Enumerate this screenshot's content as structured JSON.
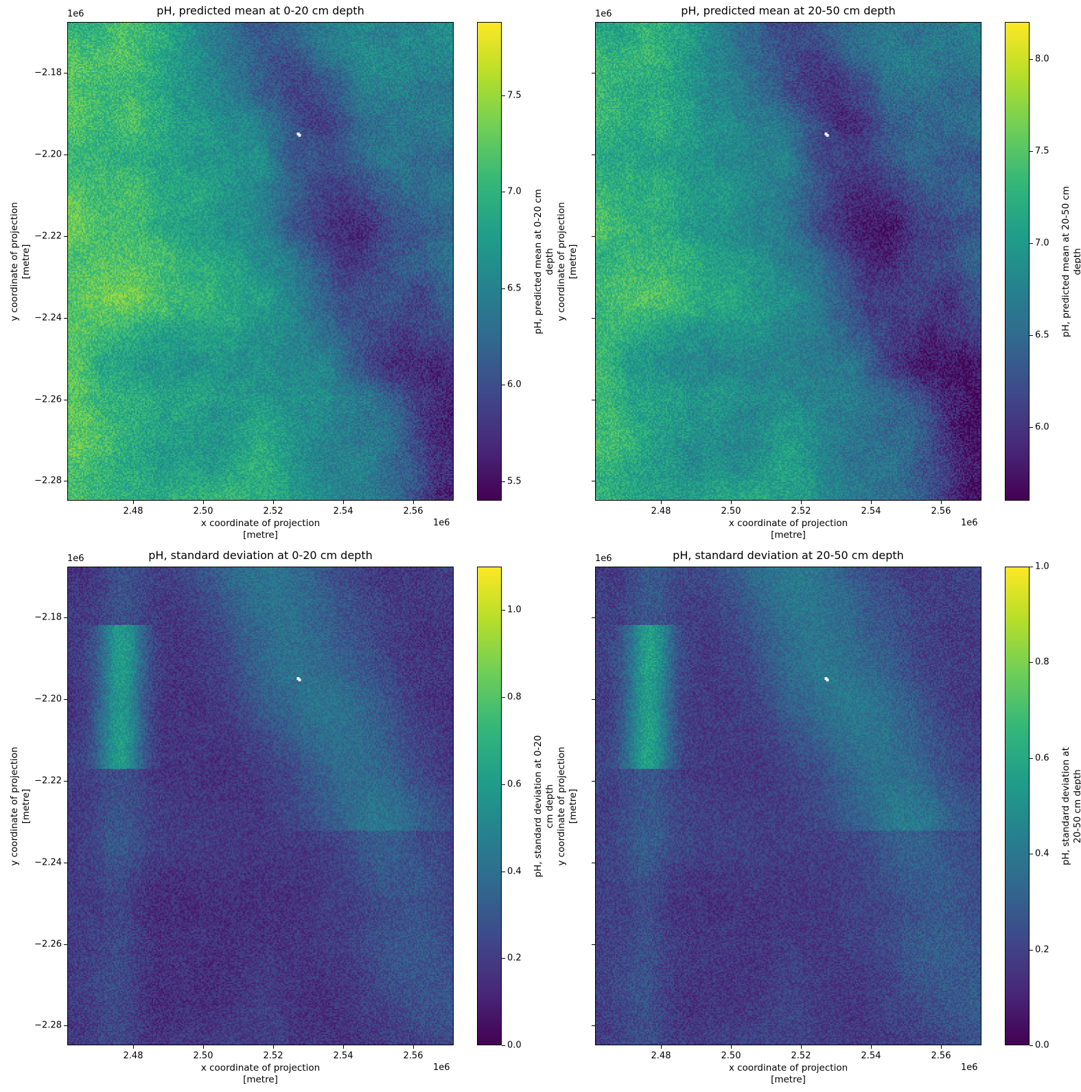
{
  "figure": {
    "x_offset_label": "1e6",
    "y_offset_label": "1e6",
    "xlabel_line1": "x coordinate of projection",
    "xlabel_line2": "[metre]",
    "ylabel_line1": "y coordinate of projection",
    "ylabel_line2": "[metre]",
    "x_ticks": [
      "2.48",
      "2.50",
      "2.52",
      "2.54",
      "2.56"
    ],
    "y_ticks": [
      "−2.18",
      "−2.20",
      "−2.22",
      "−2.24",
      "−2.26",
      "−2.28"
    ]
  },
  "panels": [
    {
      "title": "pH, predicted mean at 0-20 cm depth",
      "colorbar_label_line1": "pH, predicted mean at 0-20 cm",
      "colorbar_label_line2": "depth",
      "colorbar_ticks": [
        "7.5",
        "7.0",
        "6.5",
        "6.0",
        "5.5"
      ]
    },
    {
      "title": "pH, predicted mean at 20-50 cm depth",
      "colorbar_label_line1": "pH, predicted mean at 20-50 cm",
      "colorbar_label_line2": "depth",
      "colorbar_ticks": [
        "8.0",
        "7.5",
        "7.0",
        "6.5",
        "6.0"
      ]
    },
    {
      "title": "pH, standard deviation at 0-20 cm depth",
      "colorbar_label_line1": "pH, standard deviation at 0-20",
      "colorbar_label_line2": "cm depth",
      "colorbar_ticks": [
        "1.0",
        "0.8",
        "0.6",
        "0.4",
        "0.2",
        "0.0"
      ]
    },
    {
      "title": "pH, standard deviation at 20-50 cm depth",
      "colorbar_label_line1": "pH, standard deviation at",
      "colorbar_label_line2": "20-50 cm depth",
      "colorbar_ticks": [
        "1.0",
        "0.8",
        "0.6",
        "0.4",
        "0.2",
        "0.0"
      ]
    }
  ],
  "chart_data": [
    {
      "type": "heatmap",
      "title": "pH, predicted mean at 0-20 cm depth",
      "xlabel": "x coordinate of projection [metre]",
      "ylabel": "y coordinate of projection [metre]",
      "x_ticks": [
        2.48,
        2.5,
        2.52,
        2.54,
        2.56
      ],
      "y_ticks": [
        -2.18,
        -2.2,
        -2.22,
        -2.24,
        -2.26,
        -2.28
      ],
      "axis_scale": "1e6",
      "xlim": [
        2.4612,
        2.5716
      ],
      "ylim": [
        -2.2848,
        -2.1676
      ],
      "colormap": "viridis",
      "colorbar_label": "pH, predicted mean at 0-20 cm depth",
      "clim": [
        5.4,
        7.88
      ],
      "colorbar_ticks": [
        5.5,
        6.0,
        6.5,
        7.0,
        7.5
      ],
      "description": "Higher pH (~7.0-7.6, green-yellow) in west/southwest; lower pH (~6.0-6.5, blue) in diagonal NE band; small no-data patch near (2.527, -2.195)"
    },
    {
      "type": "heatmap",
      "title": "pH, predicted mean at 20-50 cm depth",
      "xlabel": "x coordinate of projection [metre]",
      "ylabel": "y coordinate of projection [metre]",
      "x_ticks": [
        2.48,
        2.5,
        2.52,
        2.54,
        2.56
      ],
      "y_ticks": [
        -2.18,
        -2.2,
        -2.22,
        -2.24,
        -2.26,
        -2.28
      ],
      "axis_scale": "1e6",
      "xlim": [
        2.4612,
        2.5716
      ],
      "ylim": [
        -2.2848,
        -2.1676
      ],
      "colormap": "viridis",
      "colorbar_label": "pH, predicted mean at 20-50 cm depth",
      "clim": [
        5.6,
        8.2
      ],
      "colorbar_ticks": [
        6.0,
        6.5,
        7.0,
        7.5,
        8.0
      ],
      "description": "Similar pattern to 0-20 cm, generally bluer/teal; lowest (~5.9) along NE diagonal band"
    },
    {
      "type": "heatmap",
      "title": "pH, standard deviation at 0-20 cm depth",
      "xlabel": "x coordinate of projection [metre]",
      "ylabel": "y coordinate of projection [metre]",
      "x_ticks": [
        2.48,
        2.5,
        2.52,
        2.54,
        2.56
      ],
      "y_ticks": [
        -2.18,
        -2.2,
        -2.22,
        -2.24,
        -2.26,
        -2.28
      ],
      "axis_scale": "1e6",
      "xlim": [
        2.4612,
        2.5716
      ],
      "ylim": [
        -2.2848,
        -2.1676
      ],
      "colormap": "viridis",
      "colorbar_label": "pH, standard deviation at 0-20 cm depth",
      "clim": [
        0.0,
        1.1
      ],
      "colorbar_ticks": [
        0.0,
        0.2,
        0.4,
        0.6,
        0.8,
        1.0
      ],
      "description": "Mostly low SD (~0.1-0.3); higher SD (~0.5-0.8) in NW ridge near x=2.475 and NE diagonal band"
    },
    {
      "type": "heatmap",
      "title": "pH, standard deviation at 20-50 cm depth",
      "xlabel": "x coordinate of projection [metre]",
      "ylabel": "y coordinate of projection [metre]",
      "x_ticks": [
        2.48,
        2.5,
        2.52,
        2.54,
        2.56
      ],
      "y_ticks": [
        -2.18,
        -2.2,
        -2.22,
        -2.24,
        -2.26,
        -2.28
      ],
      "axis_scale": "1e6",
      "xlim": [
        2.4612,
        2.5716
      ],
      "ylim": [
        -2.2848,
        -2.1676
      ],
      "colormap": "viridis",
      "colorbar_label": "pH, standard deviation at 20-50 cm depth",
      "clim": [
        0.0,
        1.0
      ],
      "colorbar_ticks": [
        0.0,
        0.2,
        0.4,
        0.6,
        0.8,
        1.0
      ],
      "description": "Mostly low SD (~0.1-0.3); higher SD (~0.5-0.7) along NW ridge and NE diagonal band"
    }
  ]
}
